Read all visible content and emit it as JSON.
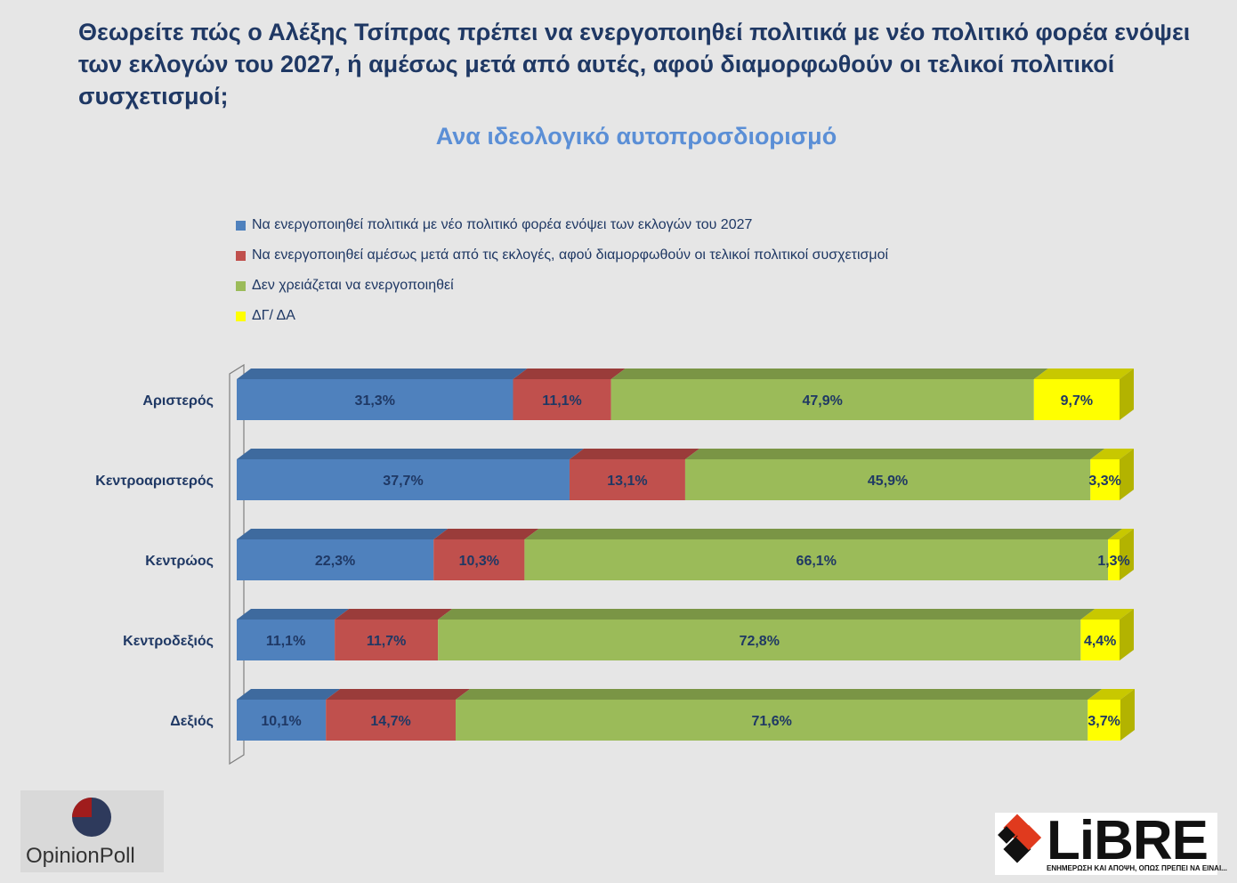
{
  "chart_data": {
    "type": "bar",
    "stacked": true,
    "orientation": "horizontal",
    "title": "Θεωρείτε πώς ο Αλέξης Τσίπρας πρέπει να ενεργοποιηθεί πολιτικά με νέο πολιτικό φορέα ενόψει των εκλογών του 2027, ή αμέσως μετά από αυτές, αφού διαμορφωθούν οι τελικοί πολιτικοί συσχετισμοί;",
    "subtitle": "Ανα ιδεολογικό αυτοπροσδιορισμό",
    "categories": [
      "Αριστερός",
      "Κεντροαριστερός",
      "Κεντρώος",
      "Κεντροδεξιός",
      "Δεξιός"
    ],
    "series": [
      {
        "name": "Να ενεργοποιηθεί πολιτικά με νέο πολιτικό φορέα ενόψει των εκλογών του 2027",
        "color": "#4f81bd",
        "top_color": "#3e6a9e",
        "values": [
          31.3,
          37.7,
          22.3,
          11.1,
          10.1
        ],
        "labels": [
          "31,3%",
          "37,7%",
          "22,3%",
          "11,1%",
          "10,1%"
        ]
      },
      {
        "name": "Να ενεργοποιηθεί αμέσως μετά από τις εκλογές, αφού διαμορφωθούν οι τελικοί πολιτικοί συσχετισμοί",
        "color": "#c0504d",
        "top_color": "#9a3c3a",
        "values": [
          11.1,
          13.1,
          10.3,
          11.7,
          14.7
        ],
        "labels": [
          "11,1%",
          "13,1%",
          "10,3%",
          "11,7%",
          "14,7%"
        ]
      },
      {
        "name": "Δεν χρειάζεται να ενεργοποιηθεί",
        "color": "#9bbb59",
        "top_color": "#7a9545",
        "values": [
          47.9,
          45.9,
          66.1,
          72.8,
          71.6
        ],
        "labels": [
          "47,9%",
          "45,9%",
          "66,1%",
          "72,8%",
          "71,6%"
        ]
      },
      {
        "name": "ΔΓ/ ΔΑ",
        "color": "#ffff00",
        "top_color": "#c8c800",
        "side_color": "#b3b300",
        "values": [
          9.7,
          3.3,
          1.3,
          4.4,
          3.7
        ],
        "labels": [
          "9,7%",
          "3,3%",
          "1,3%",
          "4,4%",
          "3,7%"
        ]
      }
    ],
    "xlim": [
      0,
      100
    ],
    "legend_position": "top"
  },
  "logos": {
    "opinionpoll": "OpinionPoll",
    "libre_word": "LiBRE",
    "libre_tagline": "ΕΝΗΜΕΡΩΣΗ ΚΑΙ ΑΠΟΨΗ, ΟΠΩΣ ΠΡΕΠΕΙ ΝΑ ΕΙΝΑΙ..."
  }
}
